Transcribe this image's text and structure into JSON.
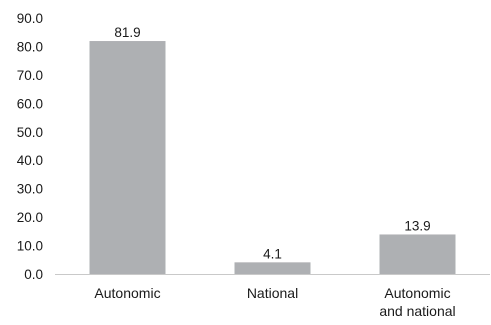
{
  "chart_data": {
    "type": "bar",
    "categories": [
      [
        "Autonomic"
      ],
      [
        "National"
      ],
      [
        "Autonomic",
        "and national"
      ]
    ],
    "values": [
      81.9,
      4.1,
      13.9
    ],
    "value_labels": [
      "81.9",
      "4.1",
      "13.9"
    ],
    "ylim": [
      0,
      90
    ],
    "yticks": [
      "0.0",
      "10.0",
      "20.0",
      "30.0",
      "40.0",
      "50.0",
      "60.0",
      "70.0",
      "80.0",
      "90.0"
    ],
    "grid": false,
    "title": "",
    "xlabel": "",
    "ylabel": "",
    "colors": {
      "bar": "#aeb0b3",
      "axis": "#c9c9c9",
      "text": "#1a1a1a"
    }
  }
}
